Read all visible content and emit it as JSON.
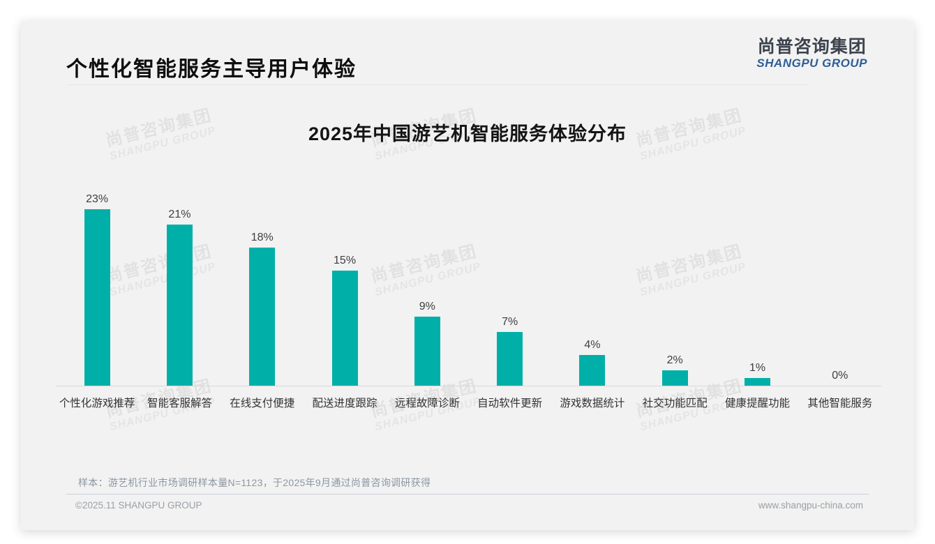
{
  "page": {
    "title": "个性化智能服务主导用户体验",
    "logo": {
      "cn": "尚普咨询集团",
      "en": "SHANGPU GROUP"
    },
    "watermark": {
      "cn": "尚普咨询集团",
      "en": "SHANGPU GROUP"
    },
    "sample_note": "样本：游艺机行业市场调研样本量N=1123，于2025年9月通过尚普咨询调研获得",
    "footer": {
      "copyright": "©2025.11 SHANGPU GROUP",
      "website": "www.shangpu-china.com"
    },
    "colors": {
      "bar": "#00B0A8",
      "logo_en": "#2E5E95",
      "card_bg": "#F2F2F2",
      "axis": "#D9D9D9"
    }
  },
  "chart_data": {
    "type": "bar",
    "title": "2025年中国游艺机智能服务体验分布",
    "categories": [
      "个性化游戏推荐",
      "智能客服解答",
      "在线支付便捷",
      "配送进度跟踪",
      "远程故障诊断",
      "自动软件更新",
      "游戏数据统计",
      "社交功能匹配",
      "健康提醒功能",
      "其他智能服务"
    ],
    "values": [
      23,
      21,
      18,
      15,
      9,
      7,
      4,
      2,
      1,
      0
    ],
    "data_labels": [
      "23%",
      "21%",
      "18%",
      "15%",
      "9%",
      "7%",
      "4%",
      "2%",
      "1%",
      "0%"
    ],
    "unit": "percent",
    "xlabel": "",
    "ylabel": "",
    "ylim": [
      0,
      25
    ],
    "grid": false,
    "legend": "none",
    "bar_color": "#00B0A8"
  }
}
